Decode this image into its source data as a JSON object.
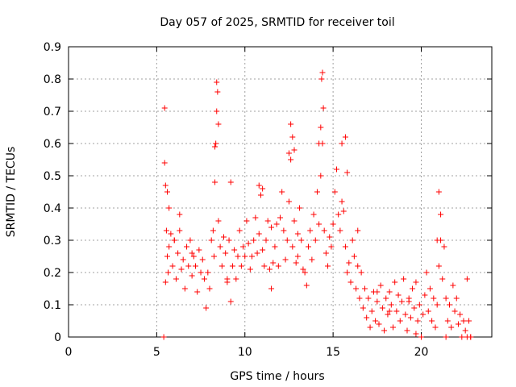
{
  "chart_data": {
    "type": "scatter",
    "title": "Day 057 of 2025, SRMTID for receiver toil",
    "xlabel": "GPS time / hours",
    "ylabel": "SRMTID / TECUs",
    "xlim": [
      0,
      24
    ],
    "ylim": [
      0,
      0.9
    ],
    "xticks": [
      "0",
      "5",
      "10",
      "15",
      "20"
    ],
    "xtick_values": [
      0,
      5,
      10,
      15,
      20
    ],
    "yticks": [
      "0",
      "0.1",
      "0.2",
      "0.3",
      "0.4",
      "0.5",
      "0.6",
      "0.7",
      "0.8",
      "0.9"
    ],
    "ytick_values": [
      0,
      0.1,
      0.2,
      0.3,
      0.4,
      0.5,
      0.6,
      0.7,
      0.8,
      0.9
    ],
    "grid": true,
    "marker": "+",
    "marker_color": "#ff0000",
    "series": [
      {
        "name": "SRMTID",
        "x": [
          5.4,
          5.45,
          5.5,
          5.55,
          5.6,
          5.65,
          5.7,
          5.8,
          5.9,
          6.0,
          6.1,
          6.2,
          6.3,
          6.4,
          6.5,
          6.6,
          6.7,
          6.8,
          6.9,
          7.0,
          7.1,
          7.2,
          7.3,
          7.4,
          7.5,
          7.6,
          7.7,
          7.8,
          7.9,
          8.0,
          8.1,
          8.2,
          8.25,
          8.3,
          8.35,
          8.4,
          8.5,
          8.6,
          8.7,
          8.8,
          8.9,
          9.0,
          9.1,
          9.2,
          9.3,
          9.4,
          9.5,
          9.6,
          9.7,
          9.8,
          9.9,
          10.0,
          10.1,
          10.2,
          10.3,
          10.4,
          10.5,
          10.6,
          10.7,
          10.8,
          10.9,
          11.0,
          11.1,
          11.2,
          11.3,
          11.4,
          11.5,
          11.6,
          11.7,
          11.8,
          11.9,
          12.0,
          12.1,
          12.2,
          12.3,
          12.4,
          12.5,
          12.6,
          12.7,
          12.8,
          12.9,
          13.0,
          13.1,
          13.2,
          13.3,
          13.4,
          13.5,
          13.6,
          13.7,
          13.8,
          13.9,
          14.0,
          14.1,
          14.2,
          14.3,
          14.4,
          14.5,
          14.6,
          14.7,
          14.8,
          14.9,
          15.0,
          15.1,
          15.2,
          15.3,
          15.4,
          15.5,
          15.6,
          15.7,
          15.8,
          15.9,
          16.0,
          16.1,
          16.2,
          16.3,
          16.4,
          16.5,
          16.6,
          16.7,
          16.8,
          16.9,
          17.0,
          17.1,
          17.2,
          17.3,
          17.4,
          17.5,
          17.6,
          17.7,
          17.8,
          17.9,
          18.0,
          18.1,
          18.2,
          18.3,
          18.4,
          18.5,
          18.6,
          18.7,
          18.8,
          18.9,
          19.0,
          19.1,
          19.2,
          19.3,
          19.4,
          19.5,
          19.6,
          19.7,
          19.8,
          19.9,
          20.0,
          20.1,
          20.2,
          20.3,
          20.4,
          20.5,
          20.6,
          20.7,
          20.8,
          20.9,
          21.0,
          21.1,
          21.2,
          21.3,
          21.4,
          21.5,
          21.6,
          21.7,
          21.8,
          21.9,
          22.0,
          22.1,
          22.2,
          22.3,
          22.4,
          22.5,
          22.6,
          22.7,
          22.8,
          5.45,
          5.6,
          5.7,
          6.3,
          8.4,
          8.45,
          8.5,
          8.3,
          9.2,
          10.8,
          11.0,
          12.6,
          12.7,
          12.8,
          12.5,
          14.3,
          14.35,
          14.4,
          14.45,
          14.2,
          15.5,
          15.7,
          15.8,
          20.9,
          21.0,
          21.1,
          5.5,
          21.4,
          22.6,
          22.8,
          6.0,
          7.0,
          9.0,
          11.5,
          13.0,
          16.4,
          17.5,
          18.2,
          19.3,
          19.7
        ],
        "y": [
          0.0,
          0.71,
          0.47,
          0.33,
          0.25,
          0.2,
          0.28,
          0.32,
          0.22,
          0.3,
          0.18,
          0.26,
          0.33,
          0.21,
          0.24,
          0.15,
          0.28,
          0.22,
          0.3,
          0.19,
          0.25,
          0.22,
          0.14,
          0.27,
          0.2,
          0.24,
          0.18,
          0.09,
          0.2,
          0.15,
          0.3,
          0.33,
          0.25,
          0.48,
          0.6,
          0.7,
          0.36,
          0.28,
          0.22,
          0.31,
          0.26,
          0.17,
          0.3,
          0.11,
          0.22,
          0.27,
          0.18,
          0.25,
          0.33,
          0.22,
          0.28,
          0.25,
          0.36,
          0.29,
          0.21,
          0.25,
          0.3,
          0.37,
          0.26,
          0.32,
          0.44,
          0.27,
          0.22,
          0.3,
          0.36,
          0.21,
          0.15,
          0.23,
          0.28,
          0.35,
          0.22,
          0.37,
          0.45,
          0.33,
          0.24,
          0.3,
          0.42,
          0.55,
          0.28,
          0.36,
          0.23,
          0.32,
          0.4,
          0.3,
          0.21,
          0.2,
          0.16,
          0.28,
          0.33,
          0.24,
          0.38,
          0.3,
          0.45,
          0.35,
          0.5,
          0.6,
          0.33,
          0.26,
          0.22,
          0.31,
          0.28,
          0.35,
          0.45,
          0.52,
          0.38,
          0.33,
          0.42,
          0.39,
          0.28,
          0.2,
          0.23,
          0.17,
          0.3,
          0.25,
          0.15,
          0.22,
          0.12,
          0.2,
          0.09,
          0.15,
          0.06,
          0.12,
          0.03,
          0.08,
          0.14,
          0.05,
          0.11,
          0.04,
          0.16,
          0.09,
          0.02,
          0.12,
          0.07,
          0.14,
          0.1,
          0.03,
          0.17,
          0.08,
          0.13,
          0.05,
          0.11,
          0.18,
          0.07,
          0.02,
          0.12,
          0.06,
          0.15,
          0.09,
          0.01,
          0.05,
          0.1,
          0.0,
          0.07,
          0.13,
          0.2,
          0.08,
          0.15,
          0.05,
          0.12,
          0.03,
          0.1,
          0.22,
          0.3,
          0.18,
          0.28,
          0.12,
          0.05,
          0.1,
          0.03,
          0.16,
          0.08,
          0.12,
          0.04,
          0.07,
          0.0,
          0.05,
          0.02,
          0.18,
          0.05,
          0.0,
          0.54,
          0.45,
          0.4,
          0.38,
          0.79,
          0.76,
          0.66,
          0.59,
          0.48,
          0.47,
          0.46,
          0.66,
          0.62,
          0.58,
          0.57,
          0.65,
          0.8,
          0.82,
          0.71,
          0.6,
          0.6,
          0.62,
          0.51,
          0.3,
          0.45,
          0.38,
          0.17,
          0.0,
          0.0,
          0.0,
          0.3,
          0.26,
          0.18,
          0.34,
          0.25,
          0.33,
          0.14,
          0.08,
          0.11,
          0.17
        ]
      }
    ]
  }
}
